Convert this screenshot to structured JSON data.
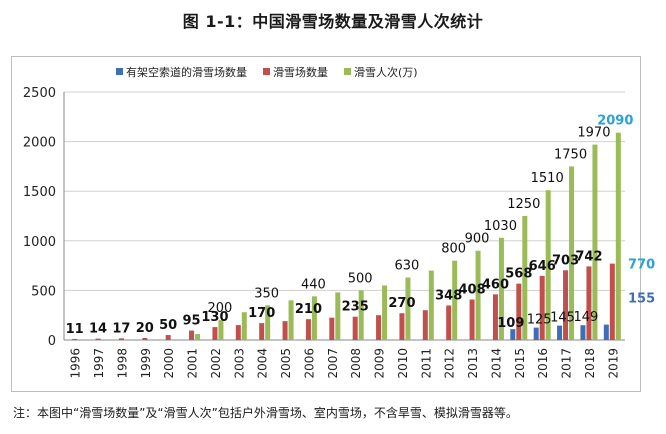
{
  "title": "图 1-1：中国滑雪场数量及滑雪人次统计",
  "footnote": "注：本图中“滑雪场数量”及“滑雪人次”包括户外滑雪场、室内雪场，不含旱雪、模拟滑雪器等。",
  "chart_data": {
    "type": "bar",
    "categories": [
      "1996",
      "1997",
      "1998",
      "1999",
      "2000",
      "2001",
      "2002",
      "2003",
      "2004",
      "2005",
      "2006",
      "2007",
      "2008",
      "2009",
      "2010",
      "2011",
      "2012",
      "2013",
      "2014",
      "2015",
      "2016",
      "2017",
      "2018",
      "2019"
    ],
    "ylim": [
      0,
      2500
    ],
    "yticks": [
      0,
      500,
      1000,
      1500,
      2000,
      2500
    ],
    "grid": true,
    "legend_position": "top",
    "series": [
      {
        "name": "有架空索道的滑雪场数量",
        "color": "#3f6eb4",
        "values": [
          0,
          0,
          0,
          0,
          0,
          0,
          0,
          0,
          0,
          0,
          0,
          0,
          0,
          0,
          0,
          0,
          0,
          0,
          0,
          109,
          125,
          145,
          149,
          155
        ],
        "labels": [
          "",
          "",
          "",
          "",
          "",
          "",
          "",
          "",
          "",
          "",
          "",
          "",
          "",
          "",
          "",
          "",
          "",
          "",
          "",
          "109",
          "125",
          "145",
          "149",
          "155"
        ]
      },
      {
        "name": "滑雪场数量",
        "color": "#c0504d",
        "values": [
          11,
          14,
          17,
          20,
          50,
          95,
          130,
          150,
          170,
          190,
          210,
          225,
          235,
          250,
          270,
          300,
          348,
          408,
          460,
          568,
          646,
          703,
          742,
          770
        ],
        "labels": [
          "11",
          "14",
          "17",
          "20",
          "50",
          "95",
          "130",
          "",
          "170",
          "",
          "210",
          "",
          "235",
          "",
          "270",
          "",
          "348",
          "408",
          "460",
          "568",
          "646",
          "703",
          "742",
          "770"
        ]
      },
      {
        "name": "滑雪人次(万)",
        "color": "#9bbb59",
        "values": [
          0,
          0,
          0,
          0,
          0,
          60,
          200,
          280,
          350,
          400,
          440,
          480,
          500,
          550,
          630,
          700,
          800,
          900,
          1030,
          1250,
          1510,
          1750,
          1970,
          2090
        ],
        "labels": [
          "",
          "",
          "",
          "",
          "",
          "",
          "200",
          "",
          "350",
          "",
          "440",
          "",
          "500",
          "",
          "630",
          "",
          "800",
          "900",
          "1030",
          "1250",
          "1510",
          "1750",
          "1970",
          "2090"
        ]
      }
    ]
  }
}
